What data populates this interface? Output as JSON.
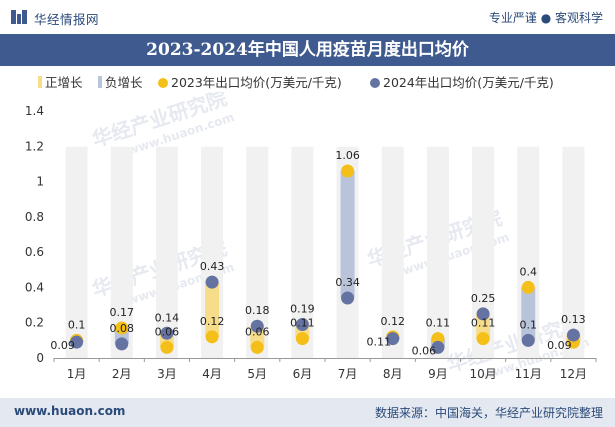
{
  "header": {
    "brand": "华经情报网",
    "tagline": "专业严谨 ● 客观科学"
  },
  "watermark": {
    "text_cn": "华经产业研究院",
    "text_url": "www.huaon.com"
  },
  "chart_data": {
    "type": "bar",
    "title": "2023-2024年中国人用疫苗月度出口均价",
    "categories": [
      "1月",
      "2月",
      "3月",
      "4月",
      "5月",
      "6月",
      "7月",
      "8月",
      "9月",
      "10月",
      "11月",
      "12月"
    ],
    "series": [
      {
        "name": "2023年出口均价(万美元/千克)",
        "values": [
          0.1,
          0.17,
          0.06,
          0.12,
          0.06,
          0.11,
          1.06,
          0.12,
          0.11,
          0.11,
          0.4,
          0.09
        ]
      },
      {
        "name": "2024年出口均价(万美元/千克)",
        "values": [
          0.09,
          0.08,
          0.14,
          0.43,
          0.18,
          0.19,
          0.34,
          0.11,
          0.06,
          0.25,
          0.1,
          0.13
        ]
      }
    ],
    "legend": [
      "正增长",
      "负增长",
      "2023年出口均价(万美元/千克)",
      "2024年出口均价(万美元/千克)"
    ],
    "y_ticks": [
      "0",
      "0.2",
      "0.4",
      "0.6",
      "0.8",
      "1",
      "1.2",
      "1.4"
    ],
    "ylim": [
      0,
      1.4
    ],
    "legend_position": "top",
    "colors": {
      "positive": "#f7dc8a",
      "negative": "#b9c4da",
      "series_2023": "#f5bf19",
      "series_2024": "#6573a3",
      "background_column": "#f1f1f1"
    }
  },
  "footer": {
    "website": "www.huaon.com",
    "source": "数据来源：中国海关，华经产业研究院整理"
  }
}
